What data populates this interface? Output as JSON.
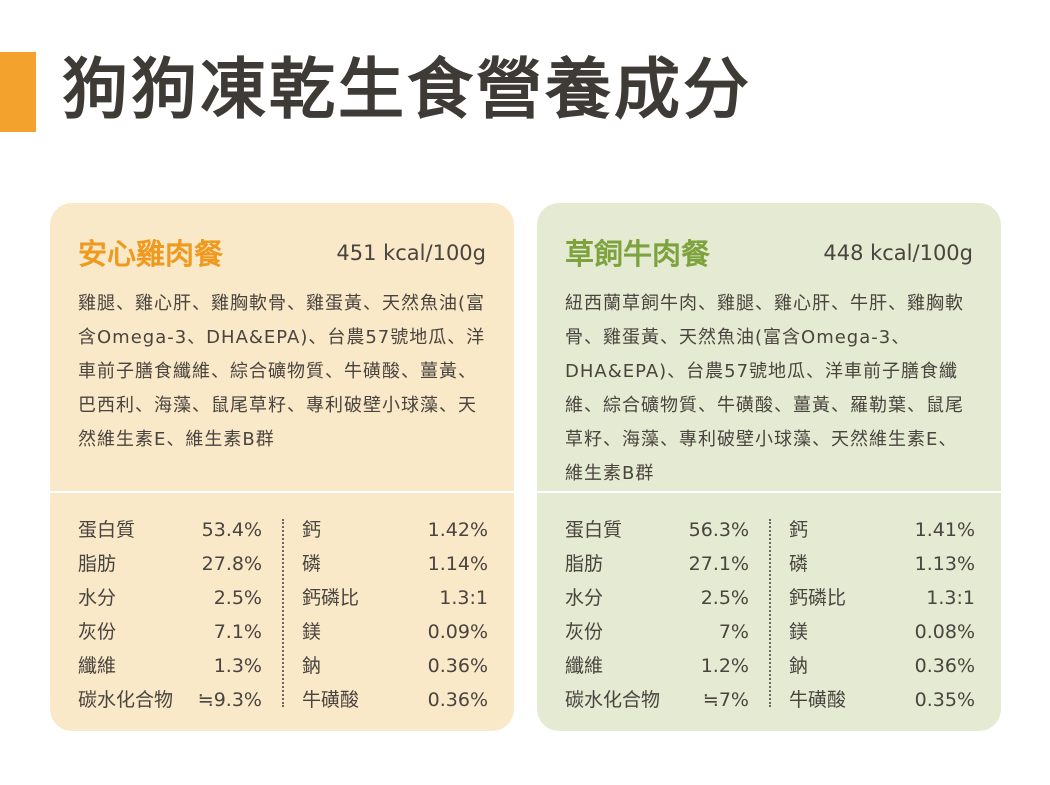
{
  "page": {
    "title": "狗狗凍乾生食營養成分"
  },
  "colors": {
    "accent": "#f3a22e",
    "chicken_name": "#ef9a1e",
    "beef_name": "#7ea33e",
    "chicken_bg": "#f9e9c8",
    "beef_bg": "#e5ebd2"
  },
  "cards": [
    {
      "name": "安心雞肉餐",
      "kcal": "451 kcal/100g",
      "ingredients": "雞腿、雞心肝、雞胸軟骨、雞蛋黃、天然魚油(富含Omega-3、DHA&EPA)、台農57號地瓜、洋車前子膳食纖維、綜合礦物質、牛磺酸、薑黃、巴西利、海藻、鼠尾草籽、專利破壁小球藻、天然維生素E、維生素B群",
      "left": [
        {
          "label": "蛋白質",
          "value": "53.4%"
        },
        {
          "label": "脂肪",
          "value": "27.8%"
        },
        {
          "label": "水分",
          "value": "2.5%"
        },
        {
          "label": "灰份",
          "value": "7.1%"
        },
        {
          "label": "纖維",
          "value": "1.3%"
        },
        {
          "label": "碳水化合物",
          "value": "≒9.3%"
        }
      ],
      "right": [
        {
          "label": "鈣",
          "value": "1.42%"
        },
        {
          "label": "磷",
          "value": "1.14%"
        },
        {
          "label": "鈣磷比",
          "value": "1.3:1"
        },
        {
          "label": "鎂",
          "value": "0.09%"
        },
        {
          "label": "鈉",
          "value": "0.36%"
        },
        {
          "label": "牛磺酸",
          "value": "0.36%"
        }
      ]
    },
    {
      "name": "草飼牛肉餐",
      "kcal": "448 kcal/100g",
      "ingredients": "紐西蘭草飼牛肉、雞腿、雞心肝、牛肝、雞胸軟骨、雞蛋黃、天然魚油(富含Omega-3、DHA&EPA)、台農57號地瓜、洋車前子膳食纖維、綜合礦物質、牛磺酸、薑黃、羅勒葉、鼠尾草籽、海藻、專利破壁小球藻、天然維生素E、維生素B群",
      "left": [
        {
          "label": "蛋白質",
          "value": "56.3%"
        },
        {
          "label": "脂肪",
          "value": "27.1%"
        },
        {
          "label": "水分",
          "value": "2.5%"
        },
        {
          "label": "灰份",
          "value": "7%"
        },
        {
          "label": "纖維",
          "value": "1.2%"
        },
        {
          "label": "碳水化合物",
          "value": "≒7%"
        }
      ],
      "right": [
        {
          "label": "鈣",
          "value": "1.41%"
        },
        {
          "label": "磷",
          "value": "1.13%"
        },
        {
          "label": "鈣磷比",
          "value": "1.3:1"
        },
        {
          "label": "鎂",
          "value": "0.08%"
        },
        {
          "label": "鈉",
          "value": "0.36%"
        },
        {
          "label": "牛磺酸",
          "value": "0.35%"
        }
      ]
    }
  ]
}
